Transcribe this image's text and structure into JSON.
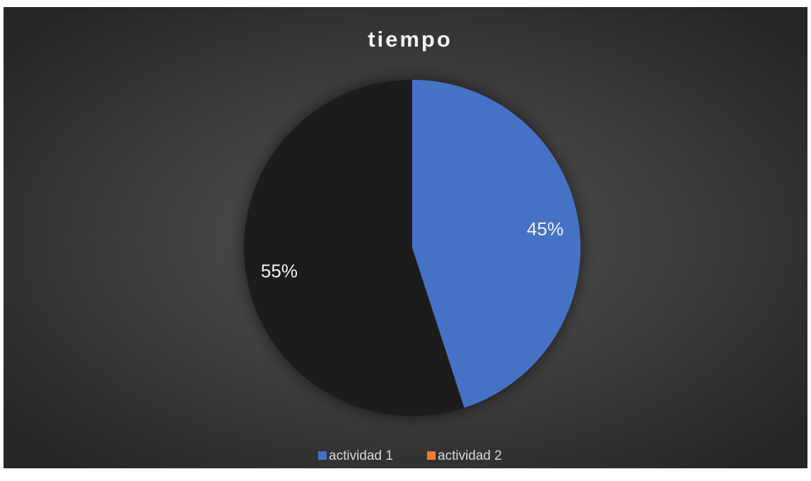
{
  "chart_data": {
    "type": "pie",
    "title": "tiempo",
    "categories": [
      "actividad 1",
      "actividad 2"
    ],
    "values": [
      45,
      55
    ],
    "value_labels": [
      "45%",
      "55%"
    ],
    "colors": [
      "#4472c4",
      "#1e1e1e"
    ],
    "legend_colors": [
      "#4472c4",
      "#ed7d31"
    ],
    "legend": "bottom"
  }
}
